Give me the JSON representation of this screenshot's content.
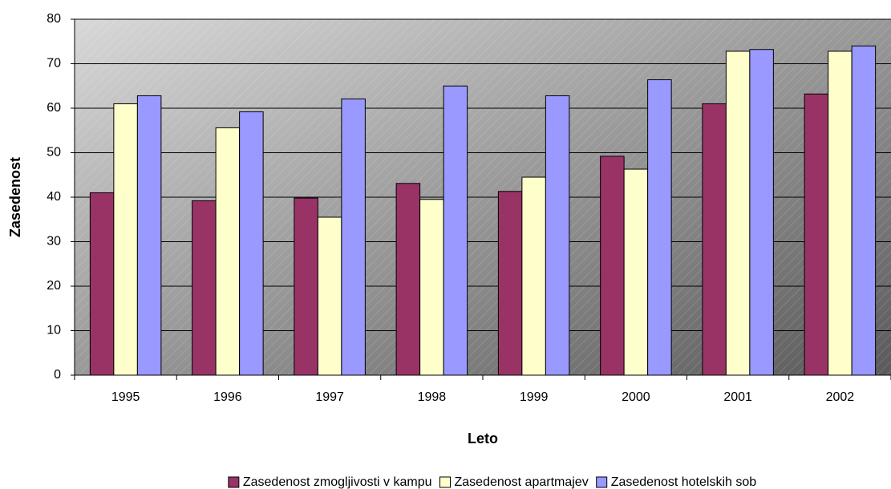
{
  "chart_data": {
    "type": "bar",
    "x_label": "Leto",
    "y_label": "Zasedenost",
    "categories": [
      "1995",
      "1996",
      "1997",
      "1998",
      "1999",
      "2000",
      "2001",
      "2002"
    ],
    "series": [
      {
        "name": "Zasedenost zmogljivosti v kampu",
        "color": "#993366",
        "values": [
          41,
          39.2,
          39.8,
          43.1,
          41.3,
          49.2,
          61,
          63.2
        ]
      },
      {
        "name": "Zasedenost apartmajev",
        "color": "#ffffcc",
        "values": [
          61,
          55.6,
          35.5,
          39.5,
          44.5,
          46.3,
          72.8,
          72.8
        ]
      },
      {
        "name": "Zasedenost hotelskih sob",
        "color": "#9999ff",
        "values": [
          62.8,
          59.2,
          62.1,
          65,
          62.8,
          66.4,
          73.2,
          74
        ]
      }
    ],
    "ylim": [
      0,
      80
    ],
    "yticks": [
      0,
      10,
      20,
      30,
      40,
      50,
      60,
      70,
      80
    ],
    "grid": true,
    "legend": "bottom"
  }
}
